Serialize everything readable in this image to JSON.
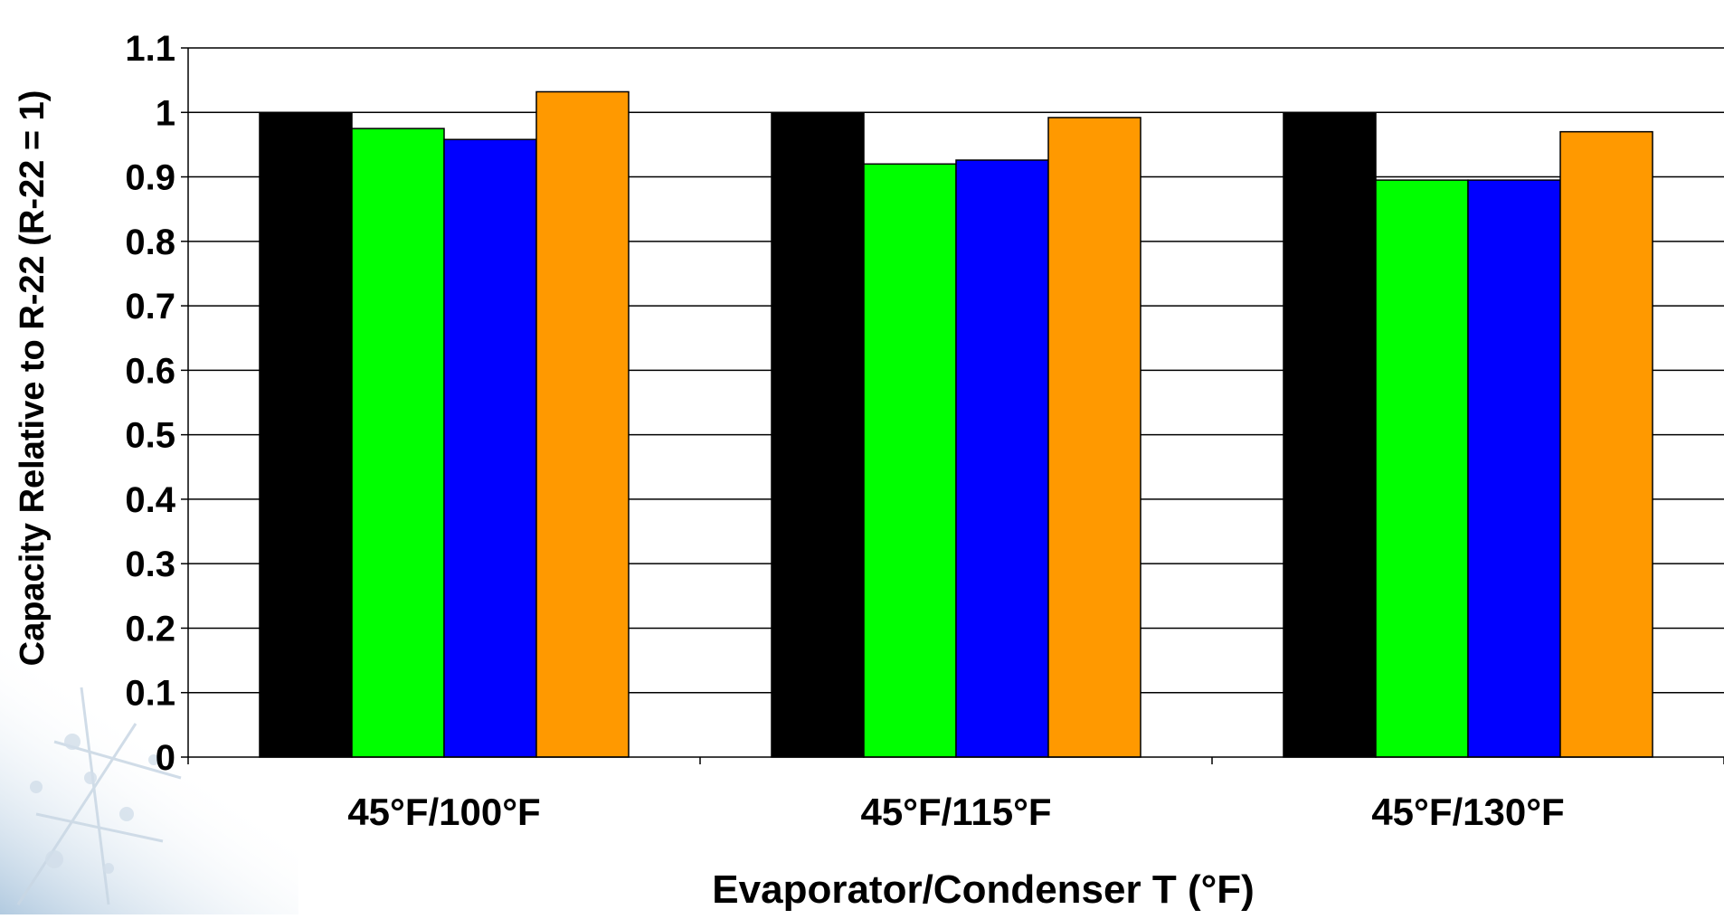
{
  "chart_data": {
    "type": "bar",
    "categories": [
      "45°F/100°F",
      "45°F/115°F",
      "45°F/130°F"
    ],
    "series": [
      {
        "color": "#000000",
        "values": [
          1.0,
          1.0,
          1.0
        ]
      },
      {
        "color": "#00ff00",
        "values": [
          0.975,
          0.92,
          0.895
        ]
      },
      {
        "color": "#0000ff",
        "values": [
          0.958,
          0.926,
          0.895
        ]
      },
      {
        "color": "#ff9900",
        "values": [
          1.032,
          0.992,
          0.97
        ]
      }
    ],
    "xlabel": "Evaporator/Condenser T (°F)",
    "ylabel": "Capacity Relative to R-22 (R-22 = 1)",
    "ylim": [
      0,
      1.1
    ],
    "yticks": [
      "0",
      "0.1",
      "0.2",
      "0.3",
      "0.4",
      "0.5",
      "0.6",
      "0.7",
      "0.8",
      "0.9",
      "1",
      "1.1"
    ],
    "grid": true,
    "legend": "none"
  }
}
